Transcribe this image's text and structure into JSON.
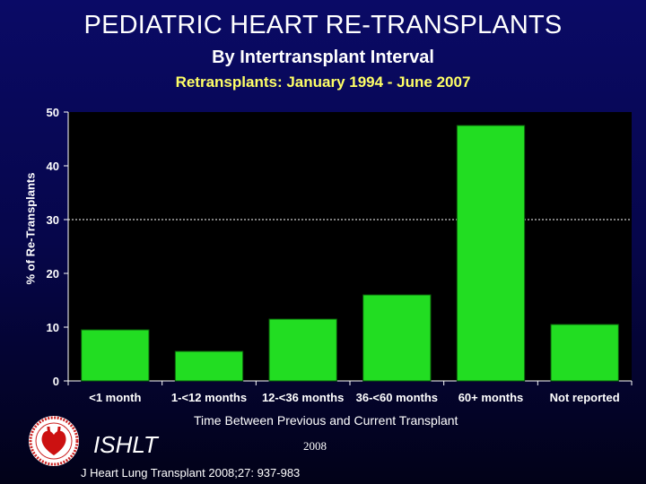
{
  "header": {
    "title": "PEDIATRIC HEART RE-TRANSPLANTS",
    "subtitle": "By Intertransplant Interval",
    "subtitle2": "Retransplants: January 1994 - June 2007"
  },
  "footer": {
    "org": "ISHLT",
    "year": "2008",
    "citation": "J Heart Lung Transplant 2008;27: 937-983"
  },
  "colors": {
    "bar": "#22dd22",
    "plot_background": "#000000",
    "text": "#ffffff",
    "subtitle2": "#ffff66"
  },
  "chart_data": {
    "type": "bar",
    "categories": [
      "<1 month",
      "1-<12 months",
      "12-<36 months",
      "36-<60 months",
      "60+ months",
      "Not reported"
    ],
    "values": [
      9.5,
      5.5,
      11.5,
      16,
      47.5,
      10.5
    ],
    "xlabel": "Time Between Previous and Current Transplant",
    "ylabel": "% of Re-Transplants",
    "ylim": [
      0,
      50
    ],
    "yticks": [
      "0",
      "10",
      "20",
      "30",
      "40",
      "50"
    ],
    "reference_line": 30,
    "grid": false,
    "legend": "none"
  }
}
